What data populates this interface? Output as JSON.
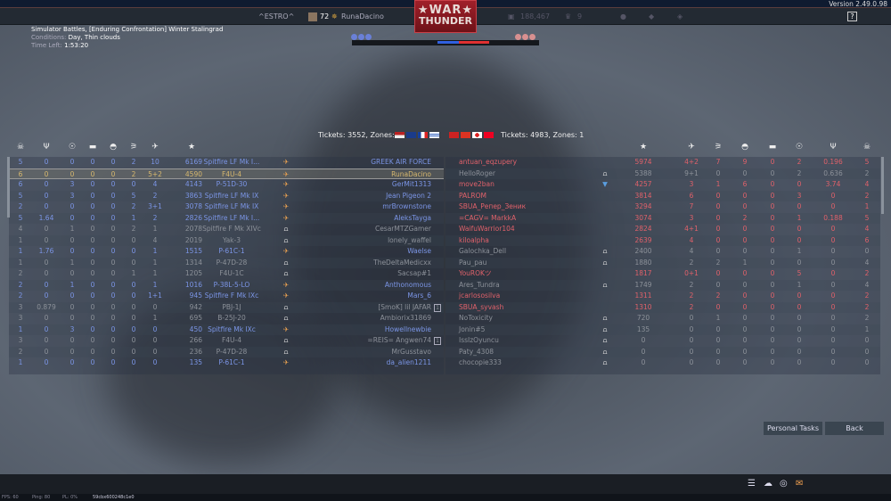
{
  "header": {
    "version": "Version 2.49.0.98",
    "squad_tag": "^ESTRO^",
    "level": "72",
    "player": "RunaDacino",
    "lions": "188,467",
    "eagles": "9",
    "help_icon": "help-icon",
    "logo_text": [
      "WAR",
      "THUNDER"
    ]
  },
  "battle": {
    "mode": "Simulator Battles, [Enduring Confrontation] Winter Stalingrad",
    "conditions_label": "Conditions:",
    "conditions": "Day, Thin clouds",
    "time_label": "Time Left:",
    "time": "1:53:20"
  },
  "colors": {
    "ally": "#7b95e6",
    "ally_self": "#d7b86e",
    "enemy": "#e0616a",
    "inactive": "#8c9199"
  },
  "teams": {
    "left": {
      "tickets": "Tickets: 3552, Zones: 2",
      "flags": [
        "usa",
        "uk",
        "france",
        "israel"
      ],
      "columns": [
        "deaths-icon",
        "assists-icon",
        "captures-icon",
        "tank-kills-icon",
        "armored-kills-icon",
        "aa-kills-icon",
        "air-kills-icon",
        "score-icon"
      ],
      "rows": [
        {
          "stats": [
            "5",
            "0",
            "0",
            "0",
            "0",
            "2",
            "10",
            "6169"
          ],
          "vehicle": "Spitfire LF Mk I...",
          "status": "plane",
          "player": "GREEK AIR FORCE",
          "state": "active"
        },
        {
          "stats": [
            "6",
            "0",
            "0",
            "0",
            "0",
            "2",
            "5+2",
            "4590"
          ],
          "vehicle": "F4U-4",
          "status": "plane",
          "player": "RunaDacino",
          "state": "self"
        },
        {
          "stats": [
            "6",
            "0",
            "3",
            "0",
            "0",
            "0",
            "4",
            "4143"
          ],
          "vehicle": "P-51D-30",
          "status": "plane",
          "player": "GerMit1313",
          "state": "active"
        },
        {
          "stats": [
            "5",
            "0",
            "3",
            "0",
            "0",
            "5",
            "2",
            "3863"
          ],
          "vehicle": "Spitfire LF Mk IX",
          "status": "plane",
          "player": "Jean Pigeon 2",
          "state": "active"
        },
        {
          "stats": [
            "2",
            "0",
            "0",
            "0",
            "0",
            "2",
            "3+1",
            "3078"
          ],
          "vehicle": "Spitfire LF Mk IX",
          "status": "plane",
          "player": "mrBrownstone",
          "state": "active"
        },
        {
          "stats": [
            "5",
            "1.64",
            "0",
            "0",
            "0",
            "1",
            "2",
            "2826"
          ],
          "vehicle": "Spitfire LF Mk I...",
          "status": "plane",
          "player": "AleksTayga",
          "state": "active"
        },
        {
          "stats": [
            "4",
            "0",
            "1",
            "0",
            "0",
            "2",
            "1",
            "2078"
          ],
          "vehicle": "Spitfire F Mk XIVc",
          "status": "crew",
          "player": "CesarMTZGamer",
          "state": "inactive"
        },
        {
          "stats": [
            "1",
            "0",
            "0",
            "0",
            "0",
            "0",
            "4",
            "2019"
          ],
          "vehicle": "Yak-3",
          "status": "crew",
          "player": "lonely_waffel",
          "state": "inactive"
        },
        {
          "stats": [
            "1",
            "1.76",
            "0",
            "0",
            "0",
            "0",
            "1",
            "1515"
          ],
          "vehicle": "P-61C-1",
          "status": "plane",
          "player": "Waelse",
          "state": "active"
        },
        {
          "stats": [
            "1",
            "0",
            "1",
            "0",
            "0",
            "0",
            "1",
            "1314"
          ],
          "vehicle": "P-47D-28",
          "status": "crew",
          "player": "TheDeltaMedicxx",
          "state": "inactive"
        },
        {
          "stats": [
            "2",
            "0",
            "0",
            "0",
            "0",
            "1",
            "1",
            "1205"
          ],
          "vehicle": "F4U-1C",
          "status": "crew",
          "player": "Sacsap#1",
          "state": "inactive"
        },
        {
          "stats": [
            "2",
            "0",
            "1",
            "0",
            "0",
            "0",
            "1",
            "1016"
          ],
          "vehicle": "P-38L-5-LO",
          "status": "plane",
          "player": "Anthonomous",
          "state": "active"
        },
        {
          "stats": [
            "2",
            "0",
            "0",
            "0",
            "0",
            "0",
            "1+1",
            "945"
          ],
          "vehicle": "Spitfire F Mk IXc",
          "status": "plane",
          "player": "Mars_6",
          "state": "active"
        },
        {
          "stats": [
            "3",
            "0.879",
            "0",
            "0",
            "0",
            "0",
            "0",
            "942"
          ],
          "vehicle": "PBJ-1J",
          "status": "crew",
          "player": "[SmoK] lil JAFAR",
          "state": "inactive",
          "badge": "1"
        },
        {
          "stats": [
            "3",
            "0",
            "0",
            "0",
            "0",
            "0",
            "1",
            "695"
          ],
          "vehicle": "B-25J-20",
          "status": "crew",
          "player": "Ambiorix31869",
          "state": "inactive"
        },
        {
          "stats": [
            "1",
            "0",
            "3",
            "0",
            "0",
            "0",
            "0",
            "450"
          ],
          "vehicle": "Spitfire Mk IXc",
          "status": "plane",
          "player": "Howellnewbie",
          "state": "active"
        },
        {
          "stats": [
            "3",
            "0",
            "0",
            "0",
            "0",
            "0",
            "0",
            "266"
          ],
          "vehicle": "F4U-4",
          "status": "crew",
          "player": "=REIS= Angwen74",
          "state": "inactive",
          "badge": "1"
        },
        {
          "stats": [
            "2",
            "0",
            "0",
            "0",
            "0",
            "0",
            "0",
            "236"
          ],
          "vehicle": "P-47D-28",
          "status": "crew",
          "player": "MrGusstavo",
          "state": "inactive"
        },
        {
          "stats": [
            "1",
            "0",
            "0",
            "0",
            "0",
            "0",
            "0",
            "135"
          ],
          "vehicle": "P-61C-1",
          "status": "plane",
          "player": "da_alien1211",
          "state": "active"
        }
      ]
    },
    "right": {
      "tickets": "Tickets: 4983, Zones: 1",
      "flags": [
        "ussr",
        "china",
        "japan",
        "china-prc"
      ],
      "columns": [
        "score-icon",
        "air-kills-icon",
        "aa-kills-icon",
        "armored-kills-icon",
        "tank-kills-icon",
        "captures-icon",
        "assists-icon",
        "deaths-icon"
      ],
      "rows": [
        {
          "player": "antuan_eqzupery",
          "status": "",
          "stats": [
            "5974",
            "4+2",
            "7",
            "9",
            "0",
            "2",
            "0.196",
            "5"
          ],
          "state": "active"
        },
        {
          "player": "HelloRoger",
          "status": "crew",
          "stats": [
            "5388",
            "9+1",
            "0",
            "0",
            "0",
            "2",
            "0.636",
            "2"
          ],
          "state": "inactive"
        },
        {
          "player": "move2ban",
          "status": "parachute",
          "stats": [
            "4257",
            "3",
            "1",
            "6",
            "0",
            "0",
            "3.74",
            "4"
          ],
          "state": "active"
        },
        {
          "player": "PALROM",
          "status": "",
          "stats": [
            "3814",
            "6",
            "0",
            "0",
            "0",
            "3",
            "0",
            "2"
          ],
          "state": "active"
        },
        {
          "player": "SBUA_Репер_Зеник",
          "status": "",
          "stats": [
            "3294",
            "7",
            "0",
            "0",
            "0",
            "0",
            "0",
            "1"
          ],
          "state": "active"
        },
        {
          "player": "=CAGV= MarkkA",
          "status": "",
          "stats": [
            "3074",
            "3",
            "0",
            "2",
            "0",
            "1",
            "0.188",
            "5"
          ],
          "state": "active"
        },
        {
          "player": "WaifuWarrior104",
          "status": "",
          "stats": [
            "2824",
            "4+1",
            "0",
            "0",
            "0",
            "0",
            "0",
            "4"
          ],
          "state": "active"
        },
        {
          "player": "kiloalpha",
          "status": "",
          "stats": [
            "2639",
            "4",
            "0",
            "0",
            "0",
            "0",
            "0",
            "6"
          ],
          "state": "active"
        },
        {
          "player": "Galochka_Dell",
          "status": "crew",
          "stats": [
            "2400",
            "4",
            "0",
            "0",
            "0",
            "1",
            "0",
            "0"
          ],
          "state": "inactive"
        },
        {
          "player": "Pau_pau",
          "status": "crew",
          "stats": [
            "1880",
            "2",
            "2",
            "1",
            "0",
            "0",
            "0",
            "4"
          ],
          "state": "inactive"
        },
        {
          "player": "YouROKツ",
          "status": "",
          "stats": [
            "1817",
            "0+1",
            "0",
            "0",
            "0",
            "5",
            "0",
            "2"
          ],
          "state": "active"
        },
        {
          "player": "Ares_Tundra",
          "status": "crew",
          "stats": [
            "1749",
            "2",
            "0",
            "0",
            "0",
            "1",
            "0",
            "4"
          ],
          "state": "inactive"
        },
        {
          "player": "jcarlososilva",
          "status": "",
          "stats": [
            "1311",
            "2",
            "2",
            "0",
            "0",
            "0",
            "0",
            "2"
          ],
          "state": "active"
        },
        {
          "player": "SBUA_syvash",
          "status": "",
          "stats": [
            "1310",
            "2",
            "0",
            "0",
            "0",
            "0",
            "0",
            "2"
          ],
          "state": "active"
        },
        {
          "player": "NoToxicity",
          "status": "crew",
          "stats": [
            "720",
            "0",
            "1",
            "0",
            "0",
            "0",
            "0",
            "2"
          ],
          "state": "inactive"
        },
        {
          "player": "Jonin#5",
          "status": "crew",
          "stats": [
            "135",
            "0",
            "0",
            "0",
            "0",
            "0",
            "0",
            "1"
          ],
          "state": "inactive"
        },
        {
          "player": "IssIzOyuncu",
          "status": "crew",
          "stats": [
            "0",
            "0",
            "0",
            "0",
            "0",
            "0",
            "0",
            "0"
          ],
          "state": "inactive"
        },
        {
          "player": "Paty_4308",
          "status": "crew",
          "stats": [
            "0",
            "0",
            "0",
            "0",
            "0",
            "0",
            "0",
            "0"
          ],
          "state": "inactive"
        },
        {
          "player": "chocopie333",
          "status": "crew",
          "stats": [
            "0",
            "0",
            "0",
            "0",
            "0",
            "0",
            "0",
            "0"
          ],
          "state": "inactive"
        }
      ]
    }
  },
  "buttons": {
    "personal_tasks": "Personal Tasks",
    "back": "Back"
  },
  "status_bar": {
    "fps": "FPS: 60",
    "ping": "Ping: 80",
    "pl": "PL: 0%",
    "session": "59cbx600248c1e0"
  }
}
